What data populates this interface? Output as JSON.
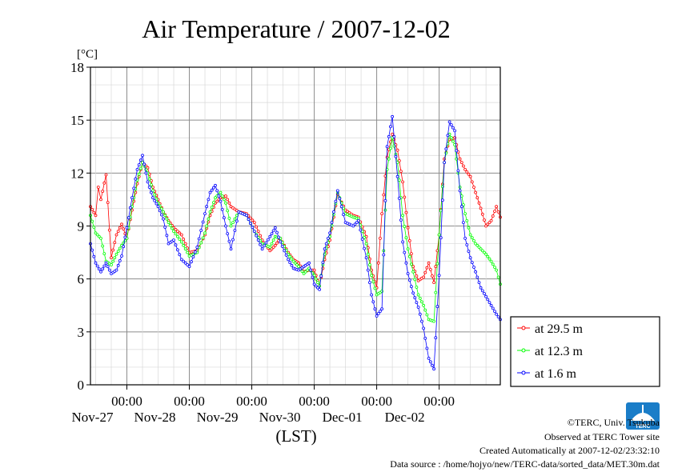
{
  "chart_data": {
    "type": "line",
    "title": "Air Temperature / 2007-12-02",
    "ylabel": "[°C]",
    "xlabel": "(LST)",
    "ylim": [
      0,
      18
    ],
    "yticks": [
      0,
      3,
      6,
      9,
      12,
      15,
      18
    ],
    "xlim": [
      "2007-11-26T10:00",
      "2007-12-02T23:30"
    ],
    "xticks": [
      {
        "time": "2007-11-27T00:00",
        "label_time": "00:00",
        "label_date": "Nov-27"
      },
      {
        "time": "2007-11-28T00:00",
        "label_time": "00:00",
        "label_date": "Nov-28"
      },
      {
        "time": "2007-11-29T00:00",
        "label_time": "00:00",
        "label_date": "Nov-29"
      },
      {
        "time": "2007-11-30T00:00",
        "label_time": "00:00",
        "label_date": "Nov-30"
      },
      {
        "time": "2007-12-01T00:00",
        "label_time": "00:00",
        "label_date": "Dec-01"
      },
      {
        "time": "2007-12-02T00:00",
        "label_time": "00:00",
        "label_date": "Dec-02"
      }
    ],
    "grid": true,
    "legend": "bottom-right, outside",
    "series": [
      {
        "name": "at 29.5 m",
        "color": "#ff0000",
        "x": [
          "2007-11-26T10:00",
          "2007-11-26T12:00",
          "2007-11-26T13:00",
          "2007-11-26T14:00",
          "2007-11-26T16:00",
          "2007-11-26T18:00",
          "2007-11-26T20:00",
          "2007-11-26T22:00",
          "2007-11-27T00:00",
          "2007-11-27T02:00",
          "2007-11-27T04:00",
          "2007-11-27T06:00",
          "2007-11-27T08:00",
          "2007-11-27T10:00",
          "2007-11-27T12:00",
          "2007-11-27T14:00",
          "2007-11-27T16:00",
          "2007-11-27T18:00",
          "2007-11-27T21:00",
          "2007-11-28T00:00",
          "2007-11-28T03:00",
          "2007-11-28T06:00",
          "2007-11-28T08:00",
          "2007-11-28T10:00",
          "2007-11-28T12:00",
          "2007-11-28T14:00",
          "2007-11-28T16:00",
          "2007-11-28T19:00",
          "2007-11-28T22:00",
          "2007-11-29T01:00",
          "2007-11-29T04:00",
          "2007-11-29T07:00",
          "2007-11-29T09:00",
          "2007-11-29T11:00",
          "2007-11-29T14:00",
          "2007-11-29T16:00",
          "2007-11-29T18:00",
          "2007-11-29T20:00",
          "2007-11-29T22:00",
          "2007-11-30T00:00",
          "2007-11-30T02:00",
          "2007-11-30T04:00",
          "2007-11-30T06:00",
          "2007-11-30T09:00",
          "2007-11-30T12:00",
          "2007-11-30T15:00",
          "2007-11-30T17:00",
          "2007-11-30T20:00",
          "2007-11-30T22:00",
          "2007-12-01T00:00",
          "2007-12-01T02:00",
          "2007-12-01T04:00",
          "2007-12-01T06:00",
          "2007-12-01T08:00",
          "2007-12-01T10:00",
          "2007-12-01T12:00",
          "2007-12-01T14:00",
          "2007-12-01T16:00",
          "2007-12-01T18:00",
          "2007-12-01T20:00",
          "2007-12-01T22:00",
          "2007-12-02T00:00",
          "2007-12-02T02:00",
          "2007-12-02T04:00",
          "2007-12-02T06:00",
          "2007-12-02T08:00",
          "2007-12-02T10:00",
          "2007-12-02T12:00",
          "2007-12-02T14:00",
          "2007-12-02T16:00",
          "2007-12-02T18:00",
          "2007-12-02T20:00",
          "2007-12-02T22:00",
          "2007-12-02T23:30"
        ],
        "y": [
          10.1,
          9.6,
          11.2,
          10.5,
          11.9,
          7.2,
          8.5,
          9.1,
          8.3,
          9.9,
          11.4,
          12.6,
          12.3,
          11.2,
          10.5,
          9.8,
          9.3,
          8.9,
          8.5,
          7.5,
          7.6,
          8.5,
          9.6,
          10.3,
          10.6,
          10.7,
          10.1,
          9.8,
          9.7,
          9.2,
          8.2,
          7.6,
          7.9,
          8.3,
          7.5,
          7.1,
          6.9,
          6.4,
          6.5,
          6.5,
          5.6,
          7.1,
          8.2,
          10.8,
          9.9,
          9.6,
          9.5,
          8.4,
          6.5,
          5.5,
          9.7,
          12.9,
          14.2,
          13.3,
          11.5,
          8.9,
          6.7,
          5.9,
          6.1,
          6.9,
          5.8,
          8.5,
          12.8,
          13.9,
          14.0,
          12.8,
          12.2,
          11.8,
          10.9,
          10.0,
          9.0,
          9.3,
          10.1,
          9.5
        ]
      },
      {
        "name": "at 12.3 m",
        "color": "#00ff00",
        "x": [
          "2007-11-26T10:00",
          "2007-11-26T12:00",
          "2007-11-26T14:00",
          "2007-11-26T16:00",
          "2007-11-26T18:00",
          "2007-11-26T20:00",
          "2007-11-26T22:00",
          "2007-11-27T00:00",
          "2007-11-27T02:00",
          "2007-11-27T04:00",
          "2007-11-27T06:00",
          "2007-11-27T08:00",
          "2007-11-27T10:00",
          "2007-11-27T12:00",
          "2007-11-27T14:00",
          "2007-11-27T16:00",
          "2007-11-27T18:00",
          "2007-11-27T21:00",
          "2007-11-28T00:00",
          "2007-11-28T03:00",
          "2007-11-28T06:00",
          "2007-11-28T08:00",
          "2007-11-28T10:00",
          "2007-11-28T12:00",
          "2007-11-28T14:00",
          "2007-11-28T16:00",
          "2007-11-28T19:00",
          "2007-11-28T22:00",
          "2007-11-29T01:00",
          "2007-11-29T04:00",
          "2007-11-29T07:00",
          "2007-11-29T09:00",
          "2007-11-29T11:00",
          "2007-11-29T14:00",
          "2007-11-29T16:00",
          "2007-11-29T18:00",
          "2007-11-29T20:00",
          "2007-11-29T22:00",
          "2007-11-30T00:00",
          "2007-11-30T02:00",
          "2007-11-30T04:00",
          "2007-11-30T06:00",
          "2007-11-30T09:00",
          "2007-11-30T12:00",
          "2007-11-30T15:00",
          "2007-11-30T17:00",
          "2007-11-30T20:00",
          "2007-11-30T22:00",
          "2007-12-01T00:00",
          "2007-12-01T02:00",
          "2007-12-01T04:00",
          "2007-12-01T06:00",
          "2007-12-01T08:00",
          "2007-12-01T10:00",
          "2007-12-01T12:00",
          "2007-12-01T14:00",
          "2007-12-01T16:00",
          "2007-12-01T18:00",
          "2007-12-01T20:00",
          "2007-12-01T22:00",
          "2007-12-02T00:00",
          "2007-12-02T02:00",
          "2007-12-02T04:00",
          "2007-12-02T06:00",
          "2007-12-02T08:00",
          "2007-12-02T10:00",
          "2007-12-02T12:00",
          "2007-12-02T14:00",
          "2007-12-02T16:00",
          "2007-12-02T18:00",
          "2007-12-02T20:00",
          "2007-12-02T22:00",
          "2007-12-02T23:30"
        ],
        "y": [
          9.6,
          8.6,
          8.3,
          7.0,
          6.8,
          7.4,
          7.9,
          8.3,
          10.1,
          11.6,
          12.6,
          12.0,
          11.0,
          10.3,
          9.8,
          9.2,
          8.7,
          8.1,
          7.3,
          7.5,
          8.6,
          9.8,
          10.6,
          10.9,
          10.3,
          9.0,
          9.8,
          9.6,
          8.7,
          8.0,
          7.8,
          8.4,
          8.3,
          7.4,
          7.0,
          6.7,
          6.3,
          6.6,
          6.2,
          5.6,
          7.4,
          8.4,
          10.9,
          9.7,
          9.5,
          9.4,
          8.0,
          6.2,
          5.1,
          5.3,
          12.2,
          14.0,
          12.6,
          9.6,
          7.7,
          6.4,
          5.1,
          4.5,
          3.7,
          3.6,
          8.5,
          12.6,
          14.2,
          13.6,
          11.2,
          9.7,
          8.5,
          8.0,
          7.7,
          7.4,
          7.0,
          6.5,
          5.7
        ]
      },
      {
        "name": "at 1.6 m",
        "color": "#0000ff",
        "x": [
          "2007-11-26T10:00",
          "2007-11-26T12:00",
          "2007-11-26T14:00",
          "2007-11-26T16:00",
          "2007-11-26T18:00",
          "2007-11-26T20:00",
          "2007-11-26T22:00",
          "2007-11-27T00:00",
          "2007-11-27T02:00",
          "2007-11-27T04:00",
          "2007-11-27T06:00",
          "2007-11-27T08:00",
          "2007-11-27T10:00",
          "2007-11-27T12:00",
          "2007-11-27T14:00",
          "2007-11-27T16:00",
          "2007-11-27T18:00",
          "2007-11-27T21:00",
          "2007-11-28T00:00",
          "2007-11-28T03:00",
          "2007-11-28T06:00",
          "2007-11-28T08:00",
          "2007-11-28T10:00",
          "2007-11-28T12:00",
          "2007-11-28T14:00",
          "2007-11-28T16:00",
          "2007-11-28T19:00",
          "2007-11-28T22:00",
          "2007-11-29T01:00",
          "2007-11-29T04:00",
          "2007-11-29T07:00",
          "2007-11-29T09:00",
          "2007-11-29T11:00",
          "2007-11-29T14:00",
          "2007-11-29T16:00",
          "2007-11-29T18:00",
          "2007-11-29T20:00",
          "2007-11-29T22:00",
          "2007-11-30T00:00",
          "2007-11-30T02:00",
          "2007-11-30T04:00",
          "2007-11-30T06:00",
          "2007-11-30T09:00",
          "2007-11-30T12:00",
          "2007-11-30T15:00",
          "2007-11-30T17:00",
          "2007-11-30T20:00",
          "2007-11-30T22:00",
          "2007-12-01T00:00",
          "2007-12-01T02:00",
          "2007-12-01T04:00",
          "2007-12-01T06:00",
          "2007-12-01T08:00",
          "2007-12-01T10:00",
          "2007-12-01T12:00",
          "2007-12-01T14:00",
          "2007-12-01T16:00",
          "2007-12-01T18:00",
          "2007-12-01T20:00",
          "2007-12-01T22:00",
          "2007-12-02T00:00",
          "2007-12-02T02:00",
          "2007-12-02T04:00",
          "2007-12-02T06:00",
          "2007-12-02T08:00",
          "2007-12-02T10:00",
          "2007-12-02T12:00",
          "2007-12-02T14:00",
          "2007-12-02T16:00",
          "2007-12-02T18:00",
          "2007-12-02T20:00",
          "2007-12-02T22:00",
          "2007-12-02T23:30"
        ],
        "y": [
          8.0,
          6.9,
          6.4,
          6.9,
          6.3,
          6.5,
          7.3,
          8.9,
          10.6,
          12.2,
          13.0,
          11.5,
          10.6,
          10.1,
          9.4,
          8.0,
          8.2,
          7.1,
          6.7,
          7.8,
          9.7,
          10.9,
          11.3,
          10.4,
          9.0,
          7.7,
          9.8,
          9.6,
          8.7,
          7.7,
          8.4,
          8.9,
          8.1,
          7.1,
          6.6,
          6.5,
          6.7,
          6.9,
          5.7,
          5.4,
          7.7,
          8.6,
          11.0,
          9.2,
          9.0,
          9.3,
          7.2,
          5.1,
          3.9,
          4.3,
          13.5,
          15.2,
          11.8,
          8.1,
          6.3,
          5.2,
          4.4,
          3.2,
          1.5,
          0.9,
          6.2,
          12.6,
          14.9,
          14.4,
          11.0,
          8.3,
          7.2,
          6.4,
          5.5,
          5.0,
          4.5,
          4.0,
          3.7
        ]
      }
    ]
  },
  "footer": {
    "copyright": "©TERC, Univ. Tsukuba",
    "observed": "Observed at TERC Tower site",
    "created": "Created Automatically at 2007-12-02/23:32:10",
    "source": "Data source : /home/hojyo/new/TERC-data/sorted_data/MET.30m.dat"
  },
  "logo": {
    "text": "TERC",
    "color": "#1a7dc8"
  }
}
